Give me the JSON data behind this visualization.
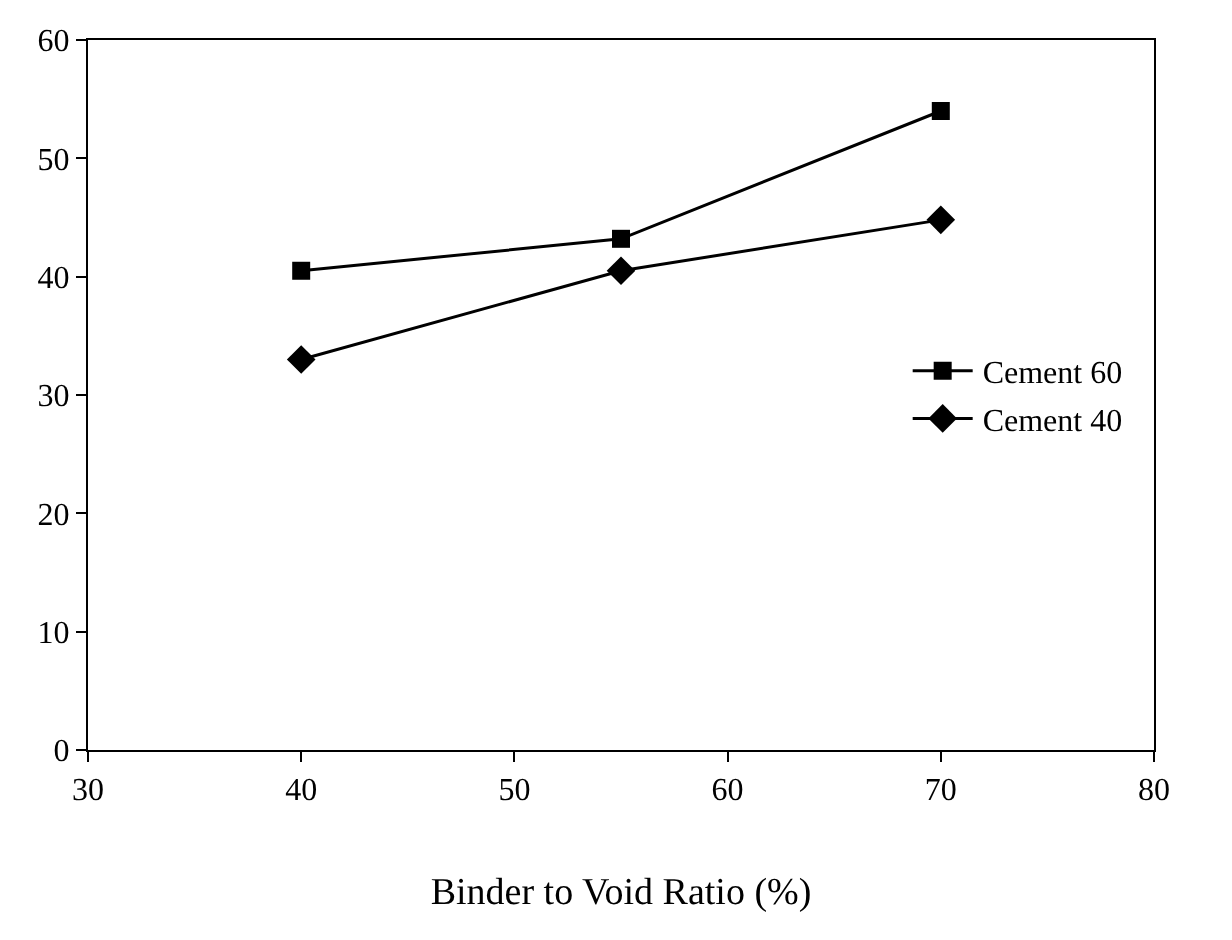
{
  "chart_data": {
    "type": "line",
    "xlabel": "Binder to Void Ratio (%)",
    "x": [
      40,
      55,
      70
    ],
    "series": [
      {
        "name": "Cement 60",
        "color": "#000000",
        "marker": "square",
        "values": [
          40.5,
          43.2,
          54
        ]
      },
      {
        "name": "Cement 40",
        "color": "#000000",
        "marker": "diamond",
        "values": [
          33,
          40.5,
          44.8
        ]
      }
    ],
    "xlim": [
      30,
      80
    ],
    "xticks": [
      30,
      40,
      50,
      60,
      70,
      80
    ],
    "ylim": [
      0,
      60
    ],
    "yticks": [
      0,
      10,
      20,
      30,
      40,
      50,
      60
    ],
    "grid": false,
    "legend": "right",
    "line_style": "solid"
  }
}
